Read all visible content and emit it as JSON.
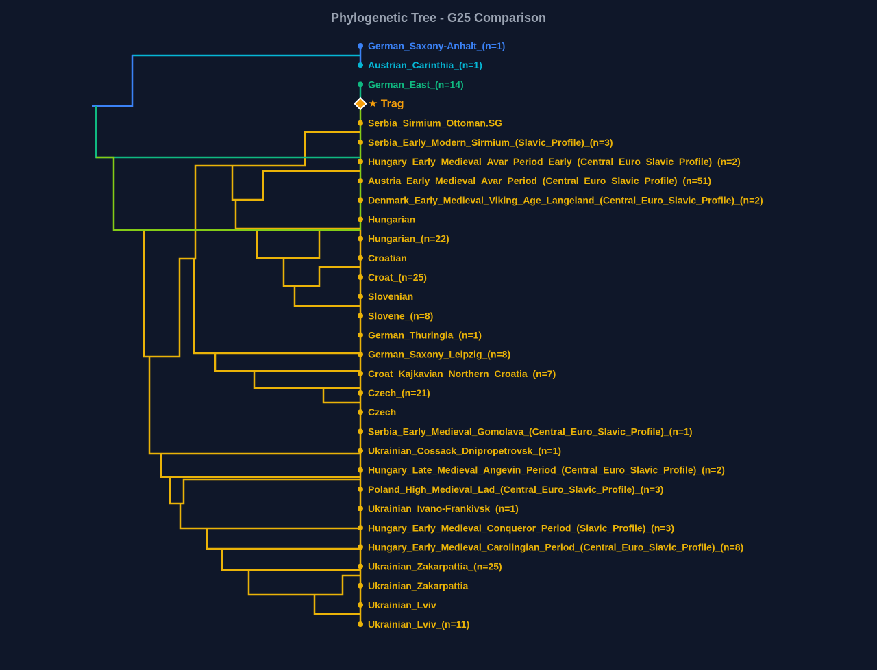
{
  "title": "Phylogenetic Tree - G25 Comparison",
  "colors": {
    "background": "#0f1729",
    "blue": "#3b82f6",
    "cyan": "#06b6d4",
    "green": "#10b981",
    "lime": "#84cc16",
    "yellow": "#eab308",
    "highlight": "#f59e0b"
  },
  "leaves": [
    {
      "label": "German_Saxony-Anhalt_(n=1)",
      "color": "blue"
    },
    {
      "label": "Austrian_Carinthia_(n=1)",
      "color": "cyan"
    },
    {
      "label": "German_East_(n=14)",
      "color": "green"
    },
    {
      "label": "★ Trag",
      "color": "highlight",
      "marker": "diamond",
      "highlighted": true
    },
    {
      "label": "Serbia_Sirmium_Ottoman.SG",
      "color": "yellow"
    },
    {
      "label": "Serbia_Early_Modern_Sirmium_(Slavic_Profile)_(n=3)",
      "color": "yellow"
    },
    {
      "label": "Hungary_Early_Medieval_Avar_Period_Early_(Central_Euro_Slavic_Profile)_(n=2)",
      "color": "yellow"
    },
    {
      "label": "Austria_Early_Medieval_Avar_Period_(Central_Euro_Slavic_Profile)_(n=51)",
      "color": "yellow"
    },
    {
      "label": "Denmark_Early_Medieval_Viking_Age_Langeland_(Central_Euro_Slavic_Profile)_(n=2)",
      "color": "yellow"
    },
    {
      "label": "Hungarian",
      "color": "yellow"
    },
    {
      "label": "Hungarian_(n=22)",
      "color": "yellow"
    },
    {
      "label": "Croatian",
      "color": "yellow"
    },
    {
      "label": "Croat_(n=25)",
      "color": "yellow"
    },
    {
      "label": "Slovenian",
      "color": "yellow"
    },
    {
      "label": "Slovene_(n=8)",
      "color": "yellow"
    },
    {
      "label": "German_Thuringia_(n=1)",
      "color": "yellow"
    },
    {
      "label": "German_Saxony_Leipzig_(n=8)",
      "color": "yellow"
    },
    {
      "label": "Croat_Kajkavian_Northern_Croatia_(n=7)",
      "color": "yellow"
    },
    {
      "label": "Czech_(n=21)",
      "color": "yellow"
    },
    {
      "label": "Czech",
      "color": "yellow"
    },
    {
      "label": "Serbia_Early_Medieval_Gomolava_(Central_Euro_Slavic_Profile)_(n=1)",
      "color": "yellow"
    },
    {
      "label": "Ukrainian_Cossack_Dnipropetrovsk_(n=1)",
      "color": "yellow"
    },
    {
      "label": "Hungary_Late_Medieval_Angevin_Period_(Central_Euro_Slavic_Profile)_(n=2)",
      "color": "yellow"
    },
    {
      "label": "Poland_High_Medieval_Lad_(Central_Euro_Slavic_Profile)_(n=3)",
      "color": "yellow"
    },
    {
      "label": "Ukrainian_Ivano-Frankivsk_(n=1)",
      "color": "yellow"
    },
    {
      "label": "Hungary_Early_Medieval_Conqueror_Period_(Slavic_Profile)_(n=3)",
      "color": "yellow"
    },
    {
      "label": "Hungary_Early_Medieval_Carolingian_Period_(Central_Euro_Slavic_Profile)_(n=8)",
      "color": "yellow"
    },
    {
      "label": "Ukrainian_Zakarpattia_(n=25)",
      "color": "yellow"
    },
    {
      "label": "Ukrainian_Zakarpattia",
      "color": "yellow"
    },
    {
      "label": "Ukrainian_Lviv",
      "color": "yellow"
    },
    {
      "label": "Ukrainian_Lviv_(n=11)",
      "color": "yellow"
    }
  ]
}
